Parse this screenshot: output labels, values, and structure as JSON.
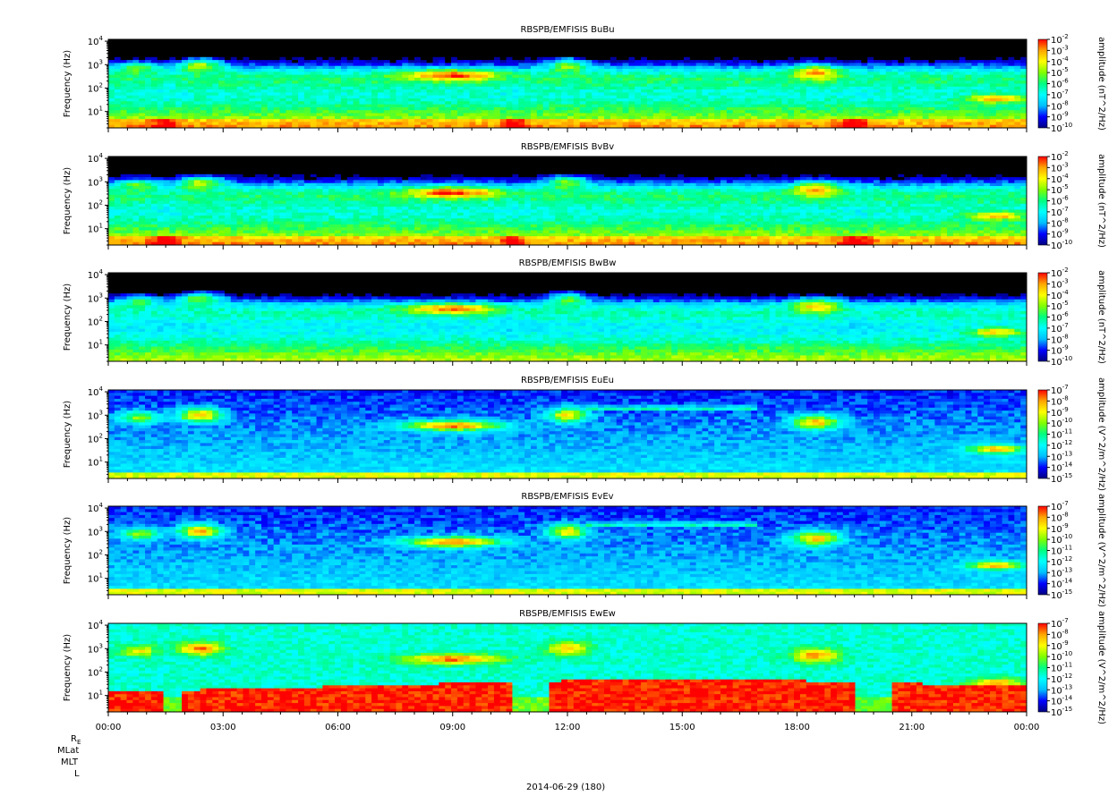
{
  "figure": {
    "date_label": "2014-06-29 (180)",
    "ephemeris_labels": [
      "R",
      "MLat",
      "MLT",
      "L"
    ],
    "ephemeris_subscript": "E"
  },
  "colormap": {
    "stops": [
      "#000080",
      "#0000ff",
      "#00bfff",
      "#00ffff",
      "#00ff80",
      "#80ff00",
      "#ffff00",
      "#ffa500",
      "#ff0000"
    ]
  },
  "chart_data": [
    {
      "type": "heatmap",
      "title": "RBSPB/EMFISIS  BuBu",
      "ylabel": "Frequency (Hz)",
      "zlabel": "amplitude (nT^2/Hz)",
      "yscale": "log",
      "ylim": [
        2,
        12000
      ],
      "yticks": [
        "10^1",
        "10^2",
        "10^3",
        "10^4"
      ],
      "zlim_exp": [
        -10,
        -2
      ],
      "zticks_exp": [
        -2,
        -3,
        -4,
        -5,
        -6,
        -7,
        -8,
        -9,
        -10
      ],
      "kind": "B"
    },
    {
      "type": "heatmap",
      "title": "RBSPB/EMFISIS  BvBv",
      "ylabel": "Frequency (Hz)",
      "zlabel": "amplitude (nT^2/Hz)",
      "yscale": "log",
      "ylim": [
        2,
        12000
      ],
      "yticks": [
        "10^1",
        "10^2",
        "10^3",
        "10^4"
      ],
      "zlim_exp": [
        -10,
        -2
      ],
      "zticks_exp": [
        -2,
        -3,
        -4,
        -5,
        -6,
        -7,
        -8,
        -9,
        -10
      ],
      "kind": "B"
    },
    {
      "type": "heatmap",
      "title": "RBSPB/EMFISIS  BwBw",
      "ylabel": "Frequency (Hz)",
      "zlabel": "amplitude (nT^2/Hz)",
      "yscale": "log",
      "ylim": [
        2,
        12000
      ],
      "yticks": [
        "10^1",
        "10^2",
        "10^3",
        "10^4"
      ],
      "zlim_exp": [
        -10,
        -2
      ],
      "zticks_exp": [
        -2,
        -3,
        -4,
        -5,
        -6,
        -7,
        -8,
        -9,
        -10
      ],
      "kind": "Bw"
    },
    {
      "type": "heatmap",
      "title": "RBSPB/EMFISIS  EuEu",
      "ylabel": "Frequency (Hz)",
      "zlabel": "amplitude (V^2/m^2/Hz)",
      "yscale": "log",
      "ylim": [
        2,
        12000
      ],
      "yticks": [
        "10^1",
        "10^2",
        "10^3",
        "10^4"
      ],
      "zlim_exp": [
        -15,
        -7
      ],
      "zticks_exp": [
        -7,
        -8,
        -9,
        -10,
        -11,
        -12,
        -13,
        -14,
        -15
      ],
      "kind": "E"
    },
    {
      "type": "heatmap",
      "title": "RBSPB/EMFISIS  EvEv",
      "ylabel": "Frequency (Hz)",
      "zlabel": "amplitude (V^2/m^2/Hz)",
      "yscale": "log",
      "ylim": [
        2,
        12000
      ],
      "yticks": [
        "10^1",
        "10^2",
        "10^3",
        "10^4"
      ],
      "zlim_exp": [
        -15,
        -7
      ],
      "zticks_exp": [
        -7,
        -8,
        -9,
        -10,
        -11,
        -12,
        -13,
        -14,
        -15
      ],
      "kind": "E"
    },
    {
      "type": "heatmap",
      "title": "RBSPB/EMFISIS  EwEw",
      "ylabel": "Frequency (Hz)",
      "zlabel": "amplitude (V^2/m^2/Hz)",
      "yscale": "log",
      "ylim": [
        2,
        12000
      ],
      "yticks": [
        "10^1",
        "10^2",
        "10^3",
        "10^4"
      ],
      "zlim_exp": [
        -15,
        -7
      ],
      "zticks_exp": [
        -7,
        -8,
        -9,
        -10,
        -11,
        -12,
        -13,
        -14,
        -15
      ],
      "kind": "Ew"
    }
  ],
  "xaxis": {
    "range_hours": [
      0,
      24
    ],
    "tick_labels": [
      "00:00",
      "03:00",
      "06:00",
      "09:00",
      "12:00",
      "15:00",
      "18:00",
      "21:00",
      "00:00"
    ]
  }
}
